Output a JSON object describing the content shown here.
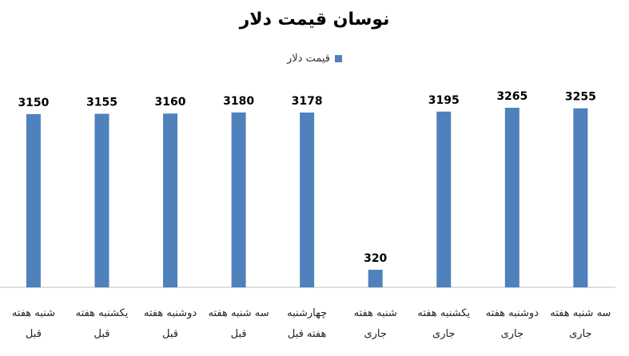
{
  "chart_data": {
    "type": "bar",
    "title": "نوسان قیمت دلار",
    "xlabel": "",
    "ylabel": "",
    "legend_position": "top",
    "grid": false,
    "ylim": [
      0,
      3500
    ],
    "colors": {
      "bar": "#4F81BD",
      "axis": "#BFBFBF"
    },
    "series": [
      {
        "name": "قیمت دلار",
        "values": [
          3150,
          3155,
          3160,
          3180,
          3178,
          320,
          3195,
          3265,
          3255
        ]
      }
    ],
    "categories": [
      [
        "شنبه هفته",
        "قبل"
      ],
      [
        "یکشنبه هفته",
        "قبل"
      ],
      [
        "دوشنبه هفته",
        "قبل"
      ],
      [
        "سه شنبه هفته",
        "قبل"
      ],
      [
        "چهارشنبه",
        "هفته قبل"
      ],
      [
        "شنبه هفته",
        "جاری"
      ],
      [
        "یکشنبه هفته",
        "جاری"
      ],
      [
        "دوشنبه هفته",
        "جاری"
      ],
      [
        "سه شنبه هفته",
        "جاری"
      ]
    ]
  }
}
